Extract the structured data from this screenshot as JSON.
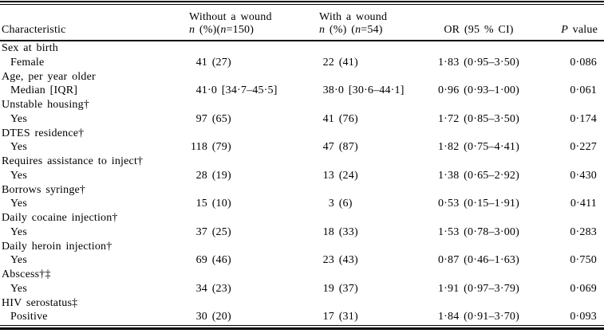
{
  "table": {
    "header": {
      "characteristic": "Characteristic",
      "without": {
        "line1": "Without a wound",
        "line2_parts": [
          {
            "t": "n",
            "i": true
          },
          {
            "t": " (%)(",
            "i": false
          },
          {
            "t": "n",
            "i": true
          },
          {
            "t": "=150)",
            "i": false
          }
        ]
      },
      "with": {
        "line1": "With a wound",
        "line2_parts": [
          {
            "t": "n",
            "i": true
          },
          {
            "t": " (%) (",
            "i": false
          },
          {
            "t": "n",
            "i": true
          },
          {
            "t": "=54)",
            "i": false
          }
        ]
      },
      "or": "OR (95 % CI)",
      "p_parts": [
        {
          "t": "P",
          "i": true
        },
        {
          "t": " value",
          "i": false
        }
      ]
    },
    "rows": [
      {
        "type": "group",
        "label": "Sex at birth"
      },
      {
        "type": "data",
        "label": "Female",
        "without_wound": "41 (27)",
        "with_wound": "22 (41)",
        "or_ci": "1·83 (0·95–3·50)",
        "p_value": "0·086"
      },
      {
        "type": "group",
        "label": "Age, per year older"
      },
      {
        "type": "data",
        "label": "Median [IQR]",
        "without_wound": "41·0 [34·7–45·5]",
        "with_wound": "38·0 [30·6–44·1]",
        "or_ci": "0·96 (0·93–1·00)",
        "p_value": "0·061"
      },
      {
        "type": "group",
        "label": "Unstable housing†"
      },
      {
        "type": "data",
        "label": "Yes",
        "without_wound": "97 (65)",
        "with_wound": "41 (76)",
        "or_ci": "1·72 (0·85–3·50)",
        "p_value": "0·174"
      },
      {
        "type": "group",
        "label": "DTES residence†"
      },
      {
        "type": "data",
        "label": "Yes",
        "without_wound": "118 (79)",
        "with_wound": "47 (87)",
        "or_ci": "1·82 (0·75–4·41)",
        "p_value": "0·227"
      },
      {
        "type": "group",
        "label": "Requires assistance to inject†"
      },
      {
        "type": "data",
        "label": "Yes",
        "without_wound": "28 (19)",
        "with_wound": "13 (24)",
        "or_ci": "1·38 (0·65–2·92)",
        "p_value": "0·430"
      },
      {
        "type": "group",
        "label": "Borrows syringe†"
      },
      {
        "type": "data",
        "label": "Yes",
        "without_wound": "15 (10)",
        "with_wound": "3 (6)",
        "or_ci": "0·53 (0·15–1·91)",
        "p_value": "0·411"
      },
      {
        "type": "group",
        "label": "Daily cocaine injection†"
      },
      {
        "type": "data",
        "label": "Yes",
        "without_wound": "37 (25)",
        "with_wound": "18 (33)",
        "or_ci": "1·53 (0·78–3·00)",
        "p_value": "0·283"
      },
      {
        "type": "group",
        "label": "Daily heroin injection†"
      },
      {
        "type": "data",
        "label": "Yes",
        "without_wound": "69 (46)",
        "with_wound": "23 (43)",
        "or_ci": "0·87 (0·46–1·63)",
        "p_value": "0·750"
      },
      {
        "type": "group",
        "label": "Abscess†‡"
      },
      {
        "type": "data",
        "label": "Yes",
        "without_wound": "34 (23)",
        "with_wound": "19 (37)",
        "or_ci": "1·91 (0·97–3·79)",
        "p_value": "0·069"
      },
      {
        "type": "group",
        "label": "HIV serostatus‡"
      },
      {
        "type": "data",
        "label": "Positive",
        "without_wound": "30 (20)",
        "with_wound": "17 (31)",
        "or_ci": "1·84 (0·91–3·70)",
        "p_value": "0·093"
      }
    ]
  }
}
